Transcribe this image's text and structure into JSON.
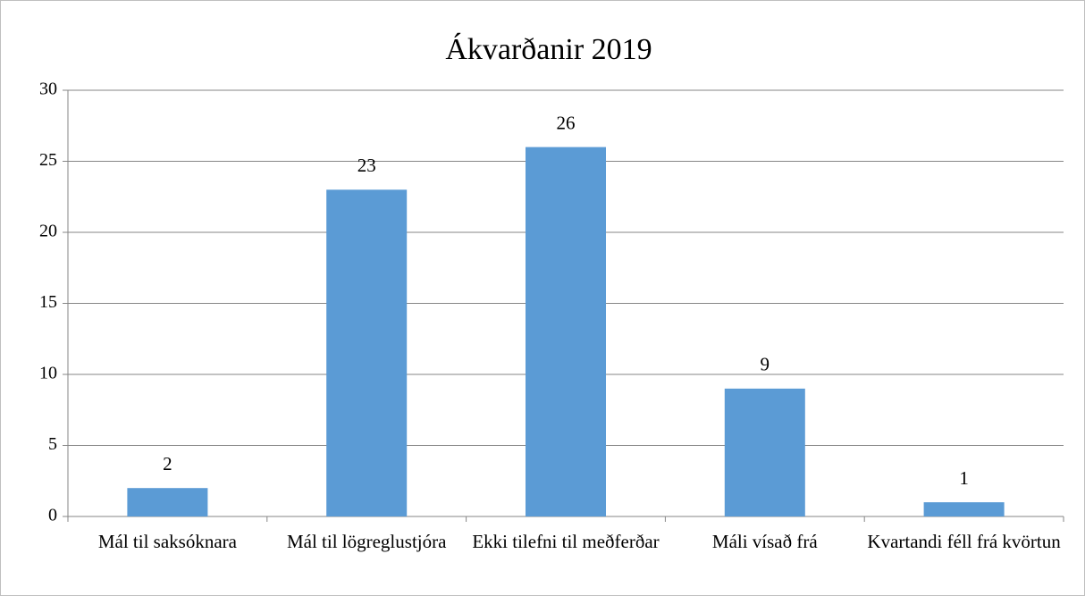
{
  "chart_data": {
    "type": "bar",
    "title": "Ákvarðanir 2019",
    "categories": [
      "Mál til saksóknara",
      "Mál til lögreglustjóra",
      "Ekki tilefni til meðferðar",
      "Máli vísað frá",
      "Kvartandi féll frá kvörtun"
    ],
    "values": [
      2,
      23,
      26,
      9,
      1
    ],
    "color": "#5b9bd5",
    "ylim": [
      0,
      30
    ],
    "yticks": [
      0,
      5,
      10,
      15,
      20,
      25,
      30
    ],
    "grid": true,
    "data_labels": true
  }
}
